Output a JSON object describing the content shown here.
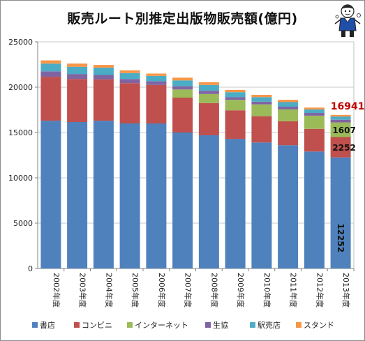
{
  "title": "販売ルート別推定出版物販売額(億円)",
  "colors": {
    "書店": "#4f81bd",
    "コンビニ": "#c0504d",
    "インターネット": "#9bbb59",
    "生協": "#8064a2",
    "駅売店": "#4bacc6",
    "スタンド": "#f79646"
  },
  "chart_data": {
    "type": "bar",
    "stacked": true,
    "title": "販売ルート別推定出版物販売額(億円)",
    "xlabel": "",
    "ylabel": "",
    "ylim": [
      0,
      25000
    ],
    "yticks": [
      0,
      5000,
      10000,
      15000,
      20000,
      25000
    ],
    "grid": true,
    "legend_position": "bottom",
    "categories": [
      "2002年度",
      "2003年度",
      "2004年度",
      "2005年度",
      "2006年度",
      "2007年度",
      "2008年度",
      "2009年度",
      "2010年度",
      "2011年度",
      "2012年度",
      "2013年度"
    ],
    "series": [
      {
        "name": "書店",
        "values": [
          16300,
          16150,
          16300,
          16000,
          16000,
          15000,
          14700,
          14300,
          13900,
          13600,
          12900,
          12252
        ]
      },
      {
        "name": "コンビニ",
        "values": [
          4850,
          4750,
          4550,
          4450,
          4250,
          3850,
          3550,
          3150,
          2900,
          2650,
          2500,
          2252
        ]
      },
      {
        "name": "インターネット",
        "values": [
          0,
          0,
          0,
          0,
          0,
          900,
          1000,
          1150,
          1300,
          1300,
          1450,
          1607
        ]
      },
      {
        "name": "生協",
        "values": [
          600,
          550,
          500,
          450,
          400,
          350,
          350,
          300,
          300,
          300,
          300,
          300
        ]
      },
      {
        "name": "駅売店",
        "values": [
          850,
          800,
          800,
          650,
          600,
          650,
          650,
          550,
          500,
          500,
          400,
          350
        ]
      },
      {
        "name": "スタンド",
        "values": [
          350,
          350,
          300,
          300,
          250,
          300,
          300,
          250,
          250,
          250,
          200,
          180
        ]
      }
    ],
    "annotations": [
      {
        "text": "16941",
        "category": "2013年度",
        "at": "above-stack",
        "style": "total"
      },
      {
        "text": "1607",
        "category": "2013年度",
        "series": "インターネット"
      },
      {
        "text": "2252",
        "category": "2013年度",
        "series": "コンビニ"
      },
      {
        "text": "12252",
        "category": "2013年度",
        "series": "書店",
        "rotated": true
      }
    ]
  }
}
